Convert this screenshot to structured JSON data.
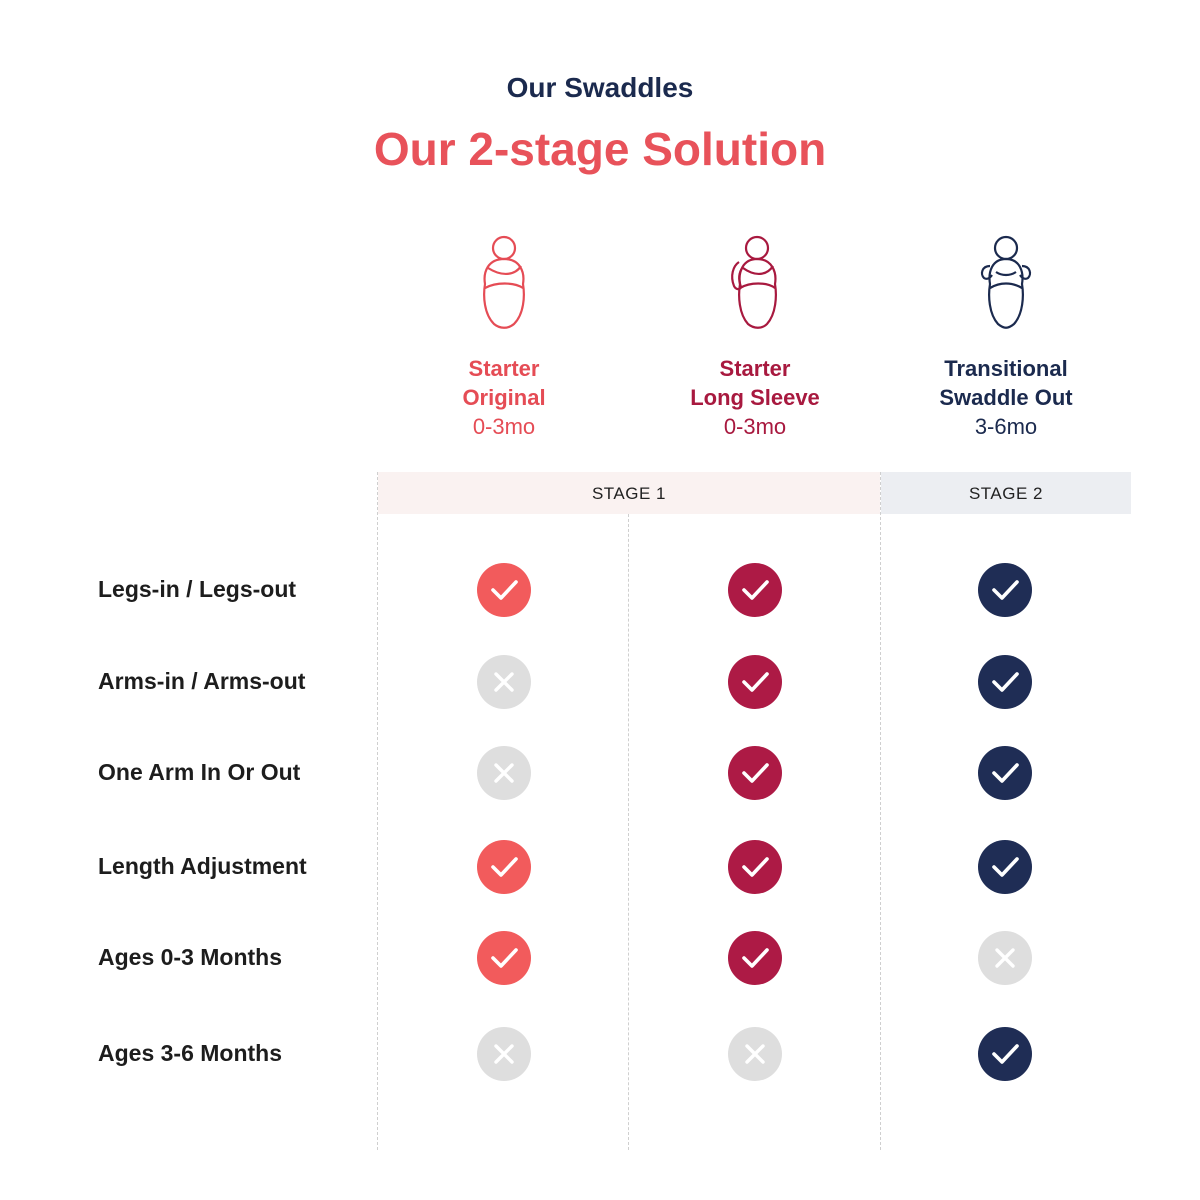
{
  "header": {
    "eyebrow": "Our Swaddles",
    "title": "Our 2-stage Solution"
  },
  "products": [
    {
      "line1": "Starter",
      "line2": "Original",
      "age": "0-3mo",
      "icon": "swaddle-original-icon",
      "color": "#e54c55"
    },
    {
      "line1": "Starter",
      "line2": "Long Sleeve",
      "age": "0-3mo",
      "icon": "swaddle-long-sleeve-icon",
      "color": "#a8193f"
    },
    {
      "line1": "Transitional",
      "line2": "Swaddle Out",
      "age": "3-6mo",
      "icon": "swaddle-out-icon",
      "color": "#1b2a4e"
    }
  ],
  "stages": [
    "STAGE 1",
    "STAGE 2"
  ],
  "features": [
    {
      "label": "Legs-in / Legs-out",
      "values": [
        true,
        true,
        true
      ]
    },
    {
      "label": "Arms-in / Arms-out",
      "values": [
        false,
        true,
        true
      ]
    },
    {
      "label": "One Arm In Or Out",
      "values": [
        false,
        true,
        true
      ]
    },
    {
      "label": "Length Adjustment",
      "values": [
        true,
        true,
        true
      ]
    },
    {
      "label": "Ages 0-3 Months",
      "values": [
        true,
        true,
        false
      ]
    },
    {
      "label": "Ages 3-6 Months",
      "values": [
        false,
        false,
        true
      ]
    }
  ],
  "colors": {
    "check_col1": "#f25b5c",
    "check_col2": "#ad1a45",
    "check_col3": "#1f2d55",
    "cross_bg": "#dedede",
    "title": "#e8525a",
    "eyebrow": "#1b2a4e"
  }
}
